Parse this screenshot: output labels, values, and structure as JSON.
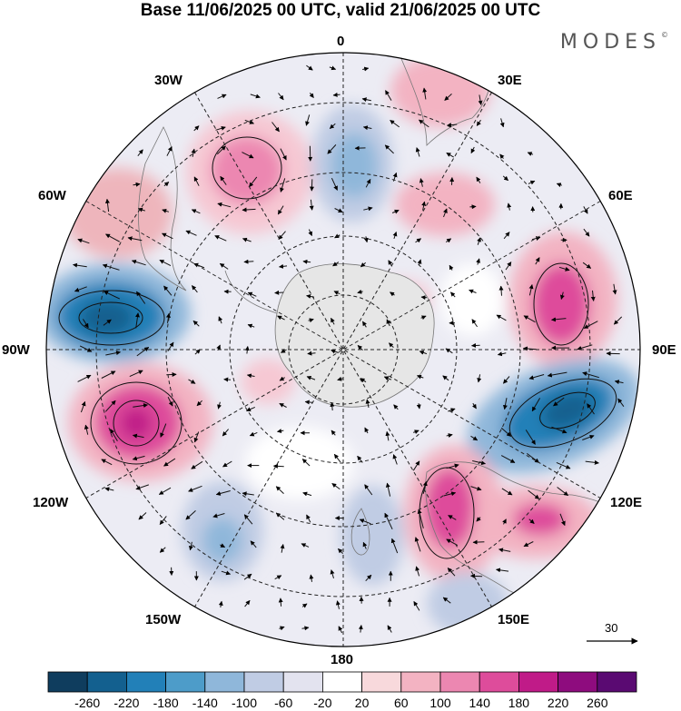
{
  "header": {
    "title": "Base 11/06/2025 00 UTC, valid 21/06/2025 00 UTC",
    "brand": "MODES",
    "brand_mark": "©"
  },
  "map": {
    "projection": "South polar stereographic",
    "longitude_labels": {
      "north": "0",
      "nne": "30E",
      "ene": "60E",
      "east": "90E",
      "ese": "120E",
      "sse": "150E",
      "south": "180",
      "ssw": "150W",
      "wsw": "120W",
      "west": "90W",
      "wnw": "60W",
      "nnw": "30W"
    },
    "wind_reference": {
      "value": "30"
    }
  },
  "anomaly_centers": [
    {
      "name": "pos-south-atlantic",
      "sign": "positive",
      "peak": 180
    },
    {
      "name": "neg-near-0",
      "sign": "negative",
      "peak": -140
    },
    {
      "name": "pos-africa",
      "sign": "positive",
      "peak": 100
    },
    {
      "name": "pos-indian-east",
      "sign": "positive",
      "peak": 180
    },
    {
      "name": "neg-90w",
      "sign": "negative",
      "peak": -260
    },
    {
      "name": "pos-110w",
      "sign": "positive",
      "peak": 220
    },
    {
      "name": "neg-100e",
      "sign": "negative",
      "peak": -260
    },
    {
      "name": "pos-australia",
      "sign": "positive",
      "peak": 180
    },
    {
      "name": "neg-150w",
      "sign": "negative",
      "peak": -140
    },
    {
      "name": "neg-new-zealand",
      "sign": "negative",
      "peak": -100
    }
  ],
  "colorbar": {
    "colors": [
      "#0f3d5e",
      "#13608f",
      "#2280b8",
      "#4d9cc9",
      "#8fb7da",
      "#c0cce4",
      "#e3e3ef",
      "#ffffff",
      "#f8d9dc",
      "#f3b3c2",
      "#ec87b1",
      "#de4c9b",
      "#c01b88",
      "#8e0c7e",
      "#5a0a72"
    ],
    "labels": [
      "-260",
      "-220",
      "-180",
      "-140",
      "-100",
      "-60",
      "-20",
      "20",
      "60",
      "100",
      "140",
      "180",
      "220",
      "260"
    ]
  }
}
